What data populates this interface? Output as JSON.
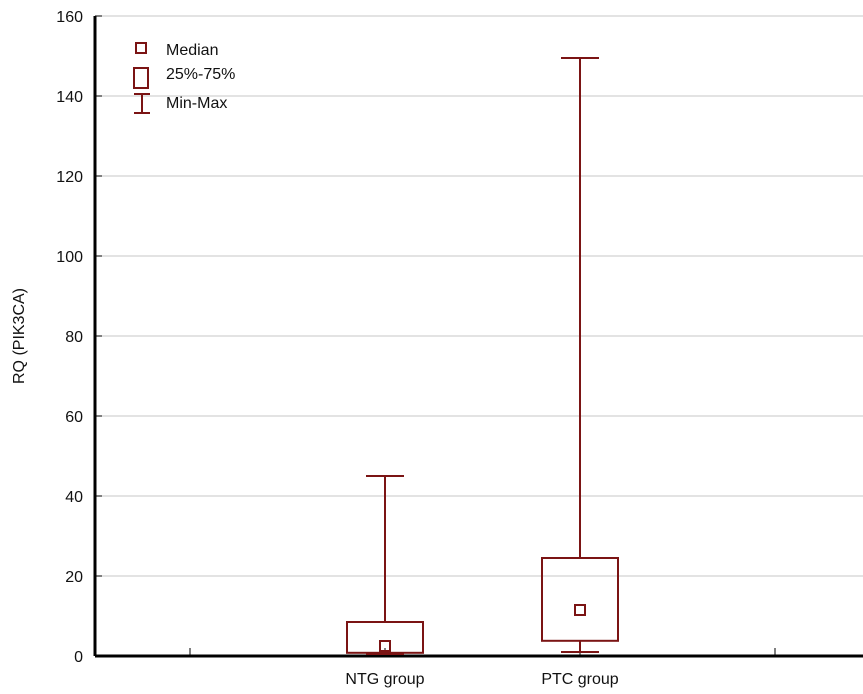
{
  "chart_data": {
    "type": "boxplot",
    "title": "",
    "xlabel": "",
    "ylabel": "RQ (PIK3CA)",
    "ylim": [
      0,
      160
    ],
    "yticks": [
      0,
      20,
      40,
      60,
      80,
      100,
      120,
      140,
      160
    ],
    "grid": true,
    "legend_position": "top-left",
    "legend": [
      {
        "symbol": "median",
        "label": "Median"
      },
      {
        "symbol": "box",
        "label": "25%-75%"
      },
      {
        "symbol": "whisker",
        "label": "Min-Max"
      }
    ],
    "categories": [
      "NTG group",
      "PTC group"
    ],
    "boxes": [
      {
        "category": "NTG group",
        "min": 0.5,
        "q1": 0.8,
        "median": 2.5,
        "q3": 8.5,
        "max": 45
      },
      {
        "category": "PTC group",
        "min": 1,
        "q1": 3.8,
        "median": 11.5,
        "q3": 24.5,
        "max": 149.5
      }
    ],
    "colors": {
      "box": "#7b1414",
      "grid": "#c7c7c7",
      "axis": "#000000"
    }
  }
}
